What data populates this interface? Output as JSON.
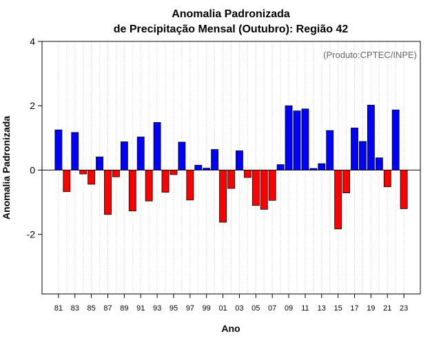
{
  "chart_data": {
    "type": "bar",
    "title": [
      "Anomalia Padronizada",
      "de Precipitação Mensal (Outubro): Região 42"
    ],
    "xlabel": "Ano",
    "ylabel": "Anomalia Padronizada",
    "credit": "(Produto:CPTEC/INPE)",
    "ylim": [
      -3.85,
      4.0
    ],
    "yticks": [
      4,
      2,
      0,
      -2
    ],
    "ytick_labels": [
      "4",
      "2",
      "0",
      "-2"
    ],
    "x": [
      "81",
      "82",
      "83",
      "84",
      "85",
      "86",
      "87",
      "88",
      "89",
      "90",
      "91",
      "92",
      "93",
      "94",
      "95",
      "96",
      "97",
      "98",
      "99",
      "00",
      "01",
      "02",
      "03",
      "04",
      "05",
      "06",
      "07",
      "08",
      "09",
      "10",
      "11",
      "12",
      "13",
      "14",
      "15",
      "16",
      "17",
      "18",
      "19",
      "20",
      "21",
      "22",
      "23"
    ],
    "xtick_labels": [
      "81",
      "83",
      "85",
      "87",
      "89",
      "91",
      "93",
      "95",
      "97",
      "99",
      "01",
      "03",
      "05",
      "07",
      "09",
      "11",
      "13",
      "15",
      "17",
      "19",
      "21",
      "23"
    ],
    "values": [
      1.25,
      -0.67,
      1.17,
      -0.12,
      -0.44,
      0.41,
      -1.38,
      -0.21,
      0.88,
      -1.27,
      1.03,
      -0.96,
      1.48,
      -0.69,
      -0.14,
      0.87,
      -0.93,
      0.15,
      0.06,
      0.64,
      -1.62,
      -0.57,
      0.6,
      -0.23,
      -1.1,
      -1.22,
      -0.94,
      0.17,
      2.0,
      1.84,
      1.9,
      0.05,
      0.2,
      1.23,
      -1.83,
      -0.71,
      1.31,
      0.89,
      2.02,
      0.38,
      -0.52,
      1.87,
      -1.2
    ],
    "colors": {
      "positive": "#0000ff",
      "negative": "#ff0000"
    },
    "grid": "vertical-dotted"
  }
}
